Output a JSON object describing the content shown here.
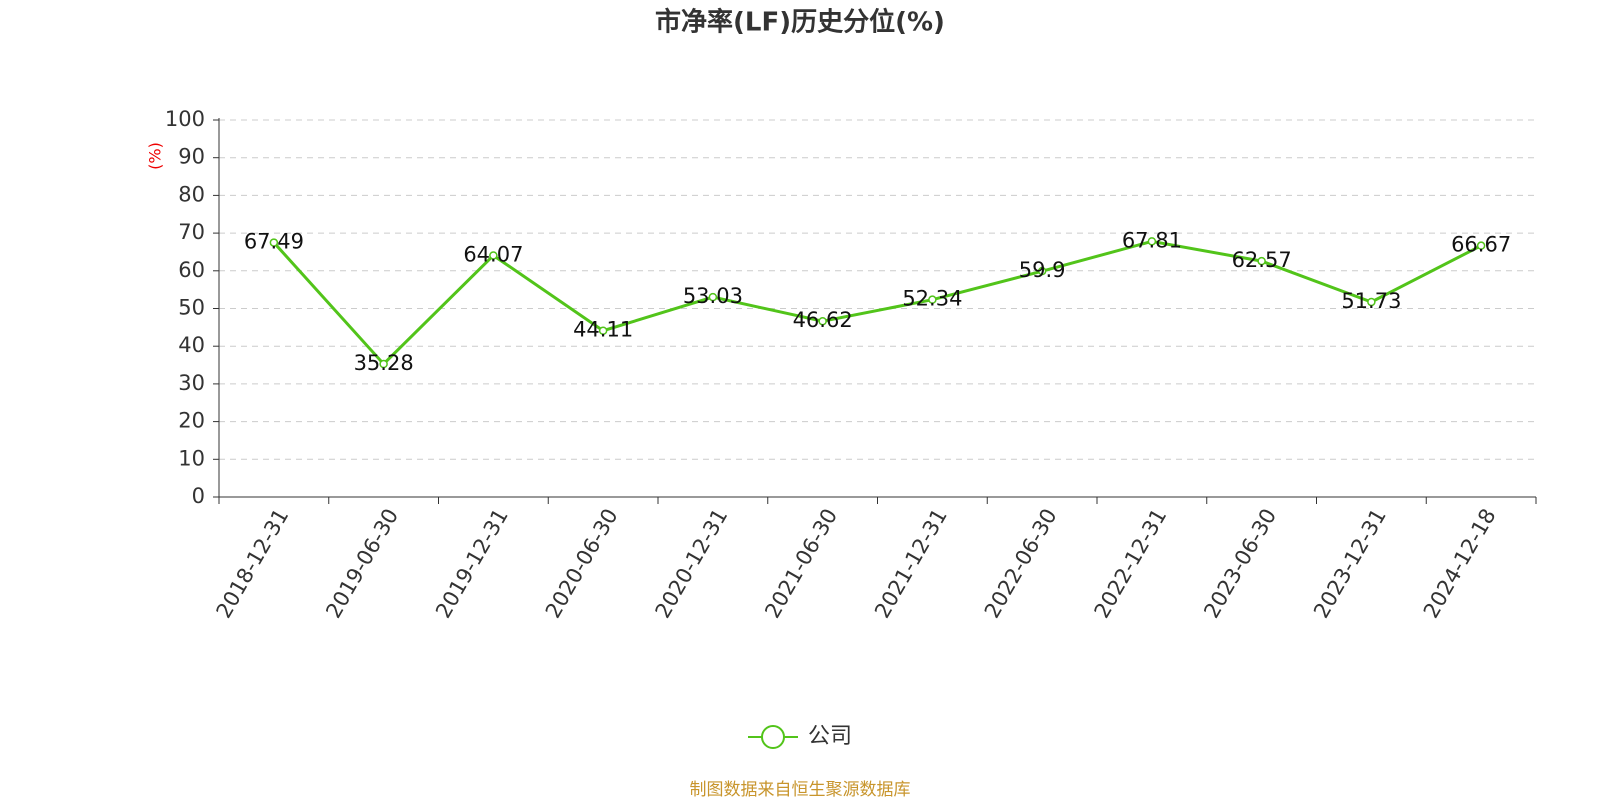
{
  "chart_data": {
    "type": "line",
    "title": "市净率(LF)历史分位(%)",
    "y_label": "(%)",
    "categories": [
      "2018-12-31",
      "2019-06-30",
      "2019-12-31",
      "2020-06-30",
      "2020-12-31",
      "2021-06-30",
      "2021-12-31",
      "2022-06-30",
      "2022-12-31",
      "2023-06-30",
      "2023-12-31",
      "2024-12-18"
    ],
    "series": [
      {
        "name": "公司",
        "color": "#52c41a",
        "values": [
          67.49,
          35.28,
          64.07,
          44.11,
          53.03,
          46.62,
          52.34,
          59.9,
          67.81,
          62.57,
          51.73,
          66.67
        ]
      }
    ],
    "ylim": [
      0,
      100
    ],
    "yticks": [
      0,
      10,
      20,
      30,
      40,
      50,
      60,
      70,
      80,
      90,
      100
    ],
    "grid": true,
    "legend": "bottom",
    "source": "制图数据来自恒生聚源数据库"
  }
}
